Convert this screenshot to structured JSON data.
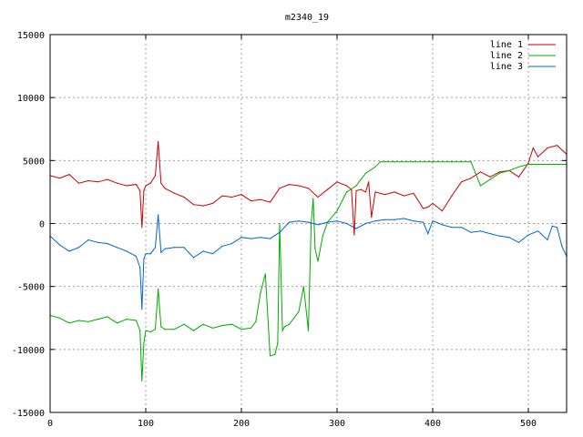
{
  "chart_data": {
    "type": "line",
    "title": "m2340_19",
    "xlabel": "",
    "ylabel": "",
    "xlim": [
      0,
      540
    ],
    "ylim": [
      -15000,
      15000
    ],
    "x_ticks": [
      0,
      100,
      200,
      300,
      400,
      500
    ],
    "y_ticks": [
      -15000,
      -10000,
      -5000,
      0,
      5000,
      10000,
      15000
    ],
    "grid": true,
    "legend_position": "top-right",
    "series": [
      {
        "name": "line 1",
        "color": "#cc0000",
        "x": [
          0,
          10,
          20,
          30,
          40,
          50,
          60,
          70,
          80,
          90,
          94,
          96,
          98,
          100,
          105,
          110,
          113,
          116,
          120,
          130,
          140,
          150,
          160,
          170,
          180,
          190,
          200,
          210,
          220,
          230,
          240,
          250,
          260,
          270,
          280,
          290,
          300,
          310,
          315,
          318,
          320,
          325,
          330,
          333,
          336,
          340,
          350,
          360,
          370,
          380,
          390,
          395,
          400,
          410,
          420,
          430,
          440,
          450,
          460,
          470,
          480,
          490,
          500,
          505,
          510,
          520,
          530,
          540
        ],
        "y": [
          3800,
          3600,
          3900,
          3200,
          3400,
          3300,
          3500,
          3200,
          3000,
          3100,
          2600,
          -300,
          2600,
          3000,
          3200,
          3800,
          6500,
          3200,
          2800,
          2400,
          2100,
          1500,
          1400,
          1600,
          2200,
          2100,
          2300,
          1800,
          1900,
          1700,
          2800,
          3100,
          3000,
          2800,
          2100,
          2700,
          3300,
          3000,
          2700,
          -900,
          2600,
          2700,
          2500,
          3300,
          500,
          2500,
          2300,
          2500,
          2200,
          2400,
          1200,
          1300,
          1600,
          1000,
          2200,
          3300,
          3600,
          4100,
          3700,
          4100,
          4200,
          3700,
          4800,
          6000,
          5300,
          6000,
          6200,
          5500
        ]
      },
      {
        "name": "line 2",
        "color": "#00aa00",
        "x": [
          0,
          10,
          20,
          30,
          40,
          50,
          60,
          70,
          80,
          90,
          94,
          96,
          98,
          100,
          105,
          110,
          113,
          116,
          120,
          130,
          140,
          150,
          160,
          170,
          180,
          190,
          200,
          210,
          215,
          220,
          225,
          230,
          235,
          238,
          240,
          243,
          245,
          250,
          260,
          265,
          270,
          273,
          275,
          277,
          280,
          285,
          290,
          300,
          310,
          320,
          330,
          340,
          345,
          350,
          360,
          380,
          400,
          420,
          430,
          440,
          450,
          460,
          470,
          480,
          490,
          500,
          510,
          540
        ],
        "y": [
          -7300,
          -7500,
          -7900,
          -7700,
          -7800,
          -7600,
          -7400,
          -7900,
          -7600,
          -7700,
          -8500,
          -12500,
          -9500,
          -8500,
          -8600,
          -8400,
          -5200,
          -8200,
          -8400,
          -8400,
          -8000,
          -8500,
          -8000,
          -8300,
          -8100,
          -8000,
          -8400,
          -8300,
          -7800,
          -5500,
          -4000,
          -10500,
          -10400,
          -9500,
          0,
          -8500,
          -8200,
          -8000,
          -7000,
          -5000,
          -8500,
          0,
          2000,
          -2000,
          -3000,
          -1000,
          100,
          1000,
          2500,
          3000,
          4000,
          4500,
          4900,
          4900,
          4900,
          4900,
          4900,
          4900,
          4900,
          4900,
          3000,
          3500,
          4000,
          4200,
          4500,
          4700,
          4700,
          4700
        ]
      },
      {
        "name": "line 3",
        "color": "#0066cc",
        "x": [
          0,
          10,
          20,
          30,
          40,
          50,
          60,
          70,
          80,
          90,
          94,
          96,
          98,
          100,
          105,
          110,
          113,
          116,
          120,
          130,
          140,
          150,
          160,
          170,
          180,
          190,
          200,
          210,
          220,
          230,
          240,
          250,
          260,
          270,
          280,
          290,
          300,
          310,
          320,
          330,
          340,
          350,
          360,
          370,
          380,
          390,
          395,
          400,
          410,
          420,
          430,
          440,
          450,
          460,
          470,
          480,
          490,
          500,
          510,
          520,
          525,
          530,
          535,
          540
        ],
        "y": [
          -1000,
          -1700,
          -2200,
          -1900,
          -1300,
          -1500,
          -1600,
          -1900,
          -2200,
          -2600,
          -3500,
          -6800,
          -2800,
          -2400,
          -2400,
          -1900,
          700,
          -2300,
          -2000,
          -1900,
          -1900,
          -2700,
          -2200,
          -2400,
          -1800,
          -1600,
          -1100,
          -1200,
          -1100,
          -1200,
          -700,
          100,
          200,
          100,
          -100,
          100,
          200,
          0,
          -400,
          0,
          200,
          300,
          300,
          400,
          200,
          100,
          -800,
          200,
          -100,
          -300,
          -300,
          -700,
          -600,
          -800,
          -1000,
          -1100,
          -1500,
          -900,
          -600,
          -1300,
          -200,
          -300,
          -1800,
          -2600
        ]
      }
    ]
  }
}
